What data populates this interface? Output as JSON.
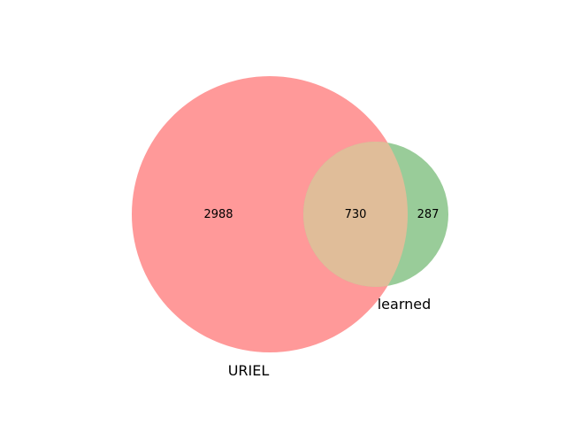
{
  "chart_data": {
    "type": "venn",
    "sets": [
      {
        "name": "URIEL",
        "only_count": "2988",
        "color": "#ff9999"
      },
      {
        "name": "learned",
        "only_count": "287",
        "color": "#99cc99"
      }
    ],
    "intersection": {
      "count": "730",
      "color": "#e0bd99"
    }
  }
}
